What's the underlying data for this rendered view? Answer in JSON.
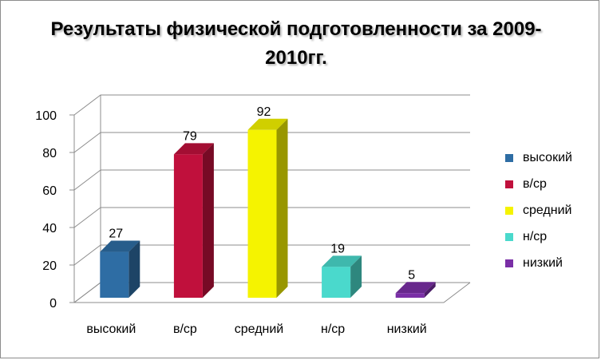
{
  "chart_data": {
    "type": "bar",
    "title": "Результаты физической подготовленности за 2009-2010гг.",
    "categories": [
      "высокий",
      "в/ср",
      "средний",
      "н/ср",
      "низкий"
    ],
    "values": [
      27,
      79,
      92,
      19,
      5
    ],
    "colors": [
      "#2e6da4",
      "#c0103c",
      "#f5f300",
      "#4ad9cc",
      "#7a2fa6"
    ],
    "ylim": [
      0,
      100
    ],
    "yticks": [
      0,
      20,
      40,
      60,
      80,
      100
    ],
    "xlabel": "",
    "ylabel": "",
    "grid": true,
    "legend_position": "right",
    "three_d": true,
    "data_labels": true
  }
}
